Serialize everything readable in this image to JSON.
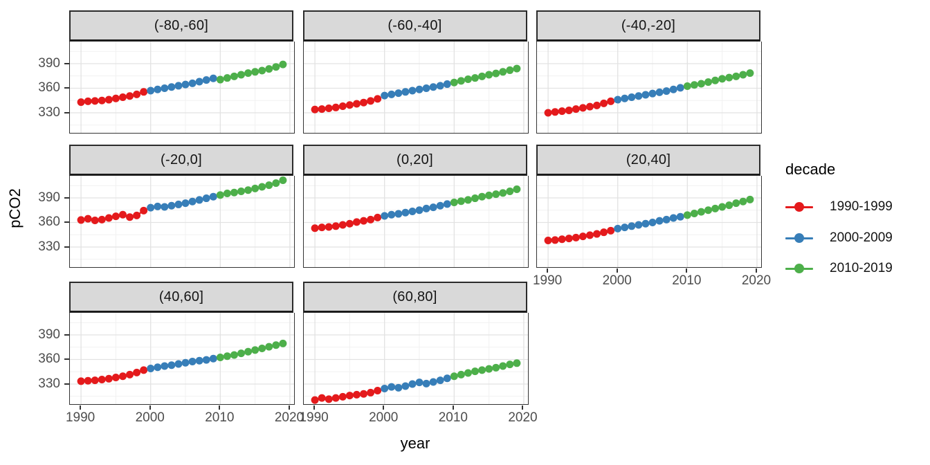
{
  "legend": {
    "title": "decade",
    "items": [
      {
        "label": "1990-1999",
        "color": "#E41A1C"
      },
      {
        "label": "2000-2009",
        "color": "#377EB8"
      },
      {
        "label": "2010-2019",
        "color": "#4DAF4A"
      }
    ]
  },
  "chart_data": {
    "type": "scatter",
    "title": "",
    "xlabel": "year",
    "ylabel": "pCO2",
    "x": [
      1990,
      1991,
      1992,
      1993,
      1994,
      1995,
      1996,
      1997,
      1998,
      1999,
      2000,
      2001,
      2002,
      2003,
      2004,
      2005,
      2006,
      2007,
      2008,
      2009,
      2010,
      2011,
      2012,
      2013,
      2014,
      2015,
      2016,
      2017,
      2018,
      2019
    ],
    "x_ticks": [
      1990,
      2000,
      2010,
      2020
    ],
    "x_minor_ticks": [
      1995,
      2005,
      2015
    ],
    "y_ticks": [
      330,
      360,
      390
    ],
    "y_minor_ticks": [
      315,
      345,
      375,
      405
    ],
    "xlim": [
      1988.4,
      2020.6
    ],
    "ylim": [
      305.5,
      417
    ],
    "grid": "major-and-minor",
    "legend_position": "right",
    "panel_colors": {
      "strip_bg": "#d9d9d9",
      "panel_bg": "#ffffff",
      "grid_major": "#e2e2e2",
      "grid_minor": "#f1f1f1",
      "border": "#333333"
    },
    "decades": [
      {
        "name": "1990-1999",
        "start": 1990,
        "end": 1999,
        "color": "#E41A1C"
      },
      {
        "name": "2000-2009",
        "start": 2000,
        "end": 2009,
        "color": "#377EB8"
      },
      {
        "name": "2010-2019",
        "start": 2010,
        "end": 2019,
        "color": "#4DAF4A"
      }
    ],
    "facets": [
      {
        "label": "(-80,-60]",
        "values": [
          343,
          344,
          344.5,
          345,
          346,
          347.5,
          349,
          350.5,
          352.5,
          355.5,
          357,
          358.5,
          360,
          361.5,
          363,
          364.5,
          366,
          368,
          370,
          372,
          370.5,
          372.5,
          374.5,
          376.5,
          378.5,
          380,
          381.5,
          383.5,
          386,
          389
        ]
      },
      {
        "label": "(-60,-40]",
        "values": [
          334,
          334.5,
          335.5,
          336.5,
          338,
          339.5,
          341,
          342.5,
          344.5,
          347,
          351,
          352.5,
          354,
          355.5,
          357,
          358.5,
          360,
          361.5,
          363,
          365,
          367,
          369,
          371,
          372.5,
          374.5,
          376.5,
          378,
          380,
          382,
          384
        ]
      },
      {
        "label": "(-40,-20]",
        "values": [
          330,
          331,
          332,
          333,
          334.5,
          336,
          337.5,
          339,
          341.5,
          344,
          346,
          347.5,
          349,
          350.5,
          352,
          353.5,
          355,
          356.5,
          358.5,
          360.5,
          362.5,
          364,
          365.5,
          367.5,
          369.5,
          371.5,
          373,
          374.5,
          376.5,
          378.5
        ]
      },
      {
        "label": "(-20,0]",
        "values": [
          363,
          364.5,
          362.5,
          363.5,
          365.5,
          367.5,
          369.5,
          366.5,
          368.5,
          374.5,
          378,
          379.5,
          379,
          380.5,
          382,
          383.5,
          385.5,
          387.5,
          389.5,
          391.5,
          393.5,
          395.5,
          396.5,
          398,
          399.5,
          401.5,
          403.5,
          405.5,
          408,
          411.5
        ]
      },
      {
        "label": "(0,20]",
        "values": [
          353,
          354,
          354.5,
          355.5,
          357,
          358.5,
          360.5,
          362,
          363.5,
          366,
          368,
          369.5,
          370.5,
          372,
          373.5,
          375,
          377,
          378.5,
          380.5,
          382.5,
          384.5,
          386,
          387.5,
          389.5,
          391.5,
          393,
          394.5,
          396,
          398,
          400.5
        ]
      },
      {
        "label": "(20,40]",
        "values": [
          338,
          338.5,
          339.5,
          340.5,
          341.5,
          343,
          344.5,
          346,
          348,
          350,
          352.5,
          354,
          355.5,
          357,
          358.5,
          360,
          362,
          363.5,
          365.5,
          367,
          369,
          371,
          373,
          375,
          377,
          379,
          381,
          383.5,
          385.5,
          388
        ]
      },
      {
        "label": "(40,60]",
        "values": [
          333.5,
          334,
          334.5,
          335.5,
          336.5,
          338,
          339.5,
          341.5,
          344,
          347,
          349,
          350.5,
          352,
          353,
          354.5,
          356,
          357.5,
          358.5,
          359.5,
          361,
          362.5,
          364,
          365.5,
          367.5,
          369.5,
          371.5,
          373.5,
          375.5,
          377.5,
          379.5
        ]
      },
      {
        "label": "(60,80]",
        "values": [
          310.5,
          313,
          311.5,
          313,
          314.5,
          316,
          317,
          318,
          319.5,
          322,
          324.5,
          326.5,
          325.5,
          327.5,
          330,
          332,
          330.5,
          332.5,
          334.5,
          337,
          339.5,
          341.5,
          343.5,
          345.5,
          347,
          348.5,
          350,
          352,
          354,
          355.5
        ]
      }
    ]
  }
}
